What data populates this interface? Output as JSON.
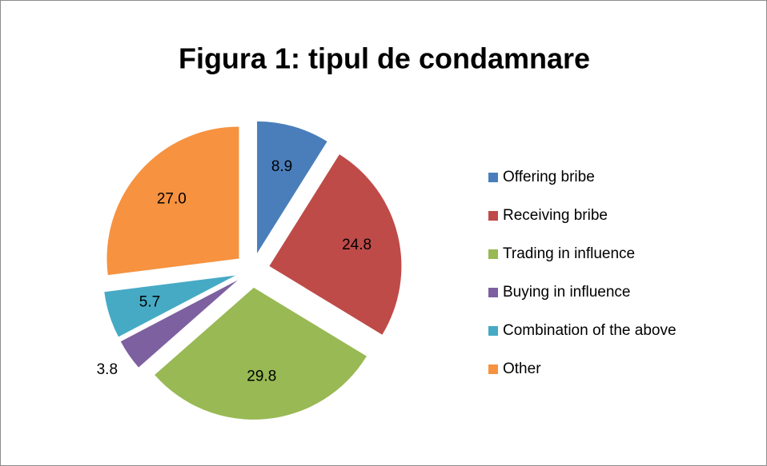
{
  "chart_data": {
    "type": "pie",
    "title": "Figura 1: tipul de condamnare",
    "categories": [
      "Offering bribe",
      "Receiving bribe",
      "Trading in influence",
      "Buying in influence",
      "Combination of the above",
      "Other"
    ],
    "values": [
      8.9,
      24.8,
      29.8,
      3.8,
      5.7,
      27.0
    ],
    "value_labels": [
      "8.9",
      "24.8",
      "29.8",
      "3.8",
      "5.7",
      "27.0"
    ],
    "colors": [
      "#4a7ebb",
      "#be4b48",
      "#98b954",
      "#7d60a0",
      "#46aac5",
      "#f69240"
    ],
    "exploded": true,
    "legend": "right"
  }
}
